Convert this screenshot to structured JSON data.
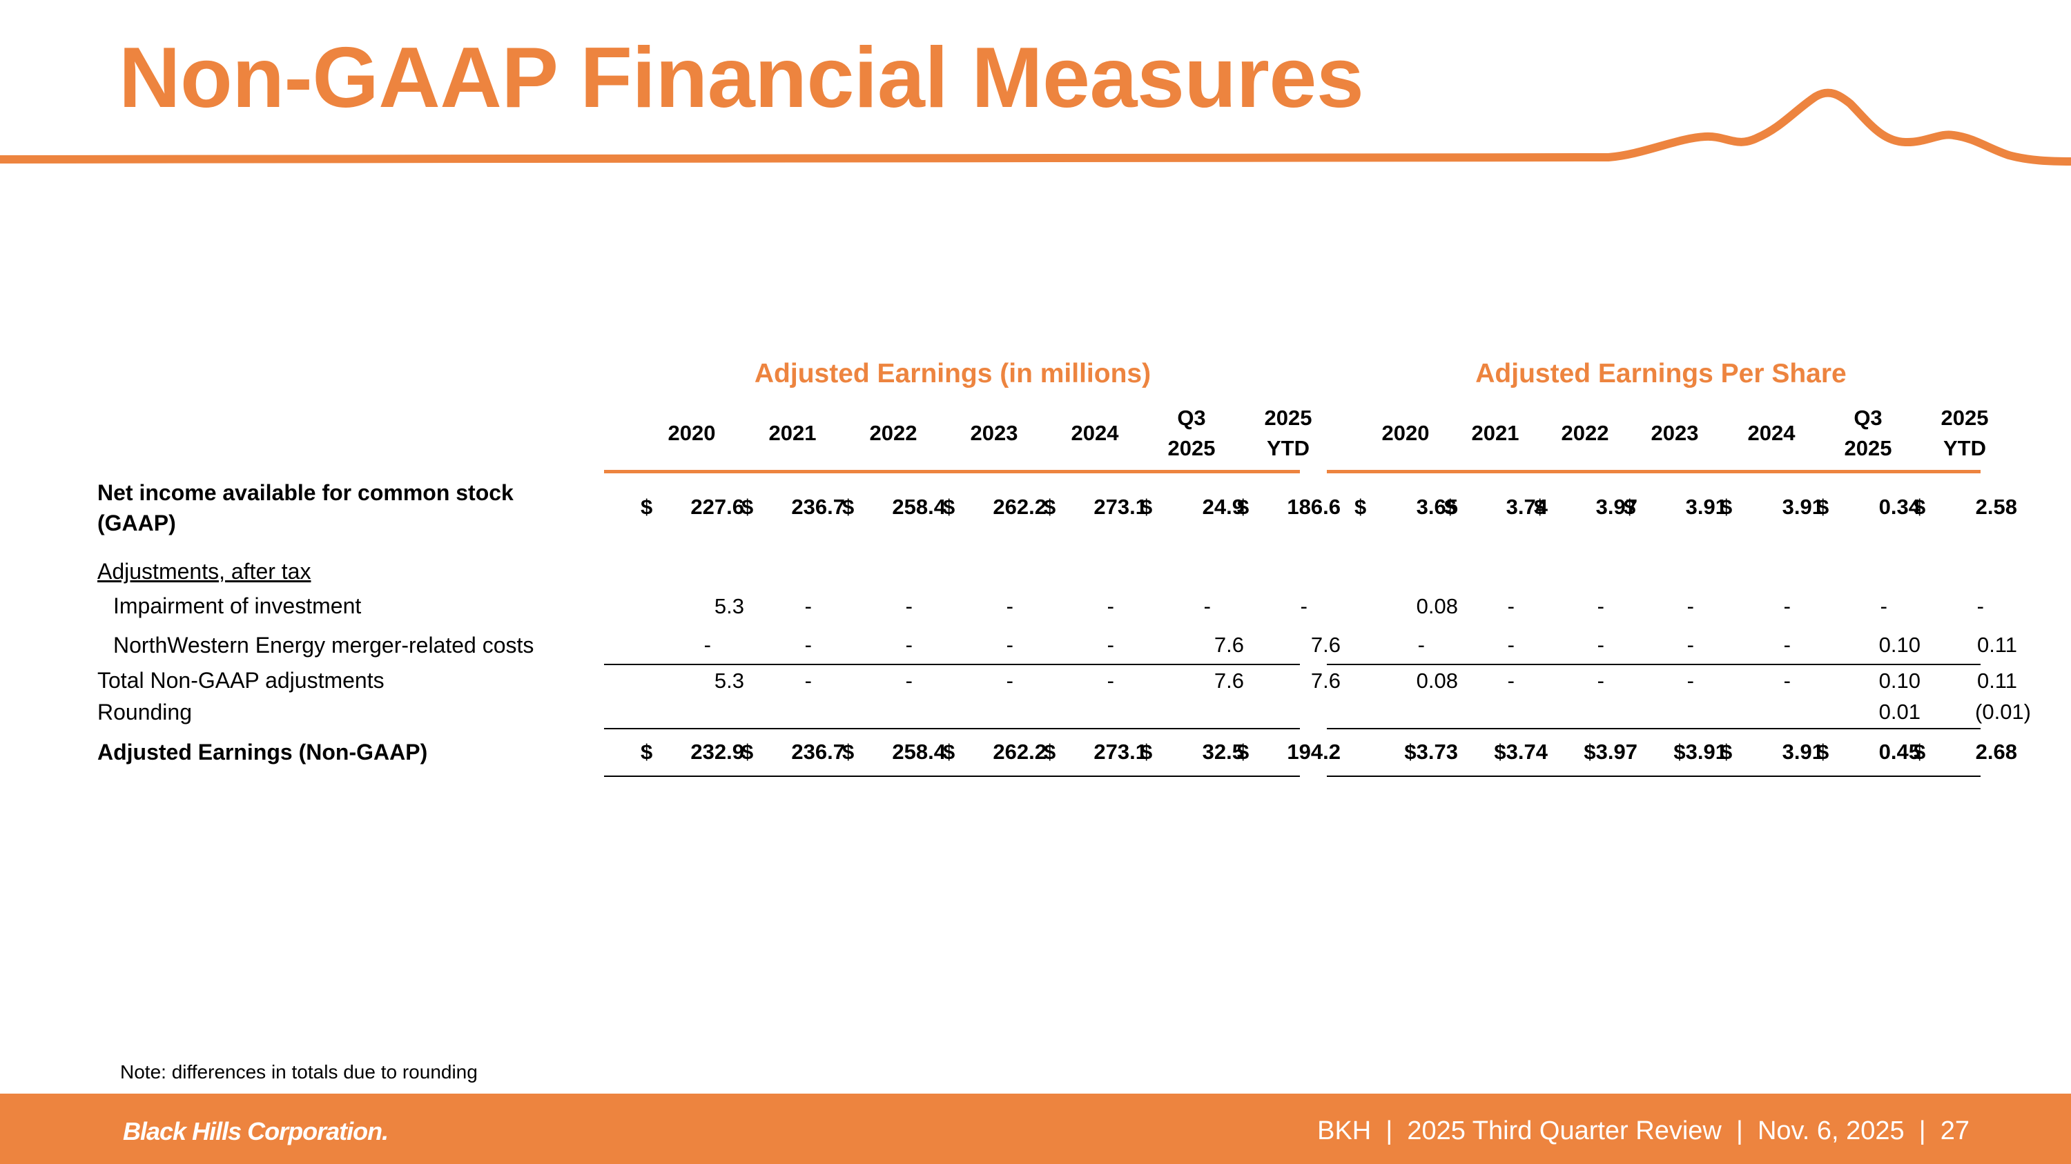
{
  "title": "Non-GAAP Financial Measures",
  "colors": {
    "accent": "#ED843F",
    "text": "#000000",
    "footer_text": "#FFFFFF"
  },
  "sections": {
    "millions": "Adjusted Earnings (in millions)",
    "eps": "Adjusted Earnings Per Share"
  },
  "columns": {
    "millions": [
      {
        "l1": "",
        "l2": "2020"
      },
      {
        "l1": "",
        "l2": "2021"
      },
      {
        "l1": "",
        "l2": "2022"
      },
      {
        "l1": "",
        "l2": "2023"
      },
      {
        "l1": "",
        "l2": "2024"
      },
      {
        "l1": "Q3",
        "l2": "2025"
      },
      {
        "l1": "2025",
        "l2": "YTD"
      }
    ],
    "eps": [
      {
        "l1": "",
        "l2": "2020"
      },
      {
        "l1": "",
        "l2": "2021"
      },
      {
        "l1": "",
        "l2": "2022"
      },
      {
        "l1": "",
        "l2": "2023"
      },
      {
        "l1": "",
        "l2": "2024"
      },
      {
        "l1": "Q3",
        "l2": "2025"
      },
      {
        "l1": "2025",
        "l2": "YTD"
      }
    ]
  },
  "rows": {
    "net_income": {
      "label1": "Net income available for common stock",
      "label2": "(GAAP)",
      "millions": [
        {
          "cur": "$",
          "val": "227.6"
        },
        {
          "cur": "$",
          "val": "236.7"
        },
        {
          "cur": "$",
          "val": "258.4"
        },
        {
          "cur": "$",
          "val": "262.2"
        },
        {
          "cur": "$",
          "val": "273.1"
        },
        {
          "cur": "$",
          "val": "24.9"
        },
        {
          "cur": "$",
          "val": "186.6"
        }
      ],
      "eps": [
        {
          "cur": "$",
          "val": "3.65"
        },
        {
          "cur": "$",
          "val": "3.74"
        },
        {
          "cur": "$",
          "val": "3.97"
        },
        {
          "cur": "$",
          "val": "3.91"
        },
        {
          "cur": "$",
          "val": "3.91"
        },
        {
          "cur": "$",
          "val": "0.34"
        },
        {
          "cur": "$",
          "val": "2.58"
        }
      ]
    },
    "adjustments_header": "Adjustments, after tax",
    "impairment": {
      "label": "Impairment of investment",
      "millions": [
        "5.3",
        "-",
        "-",
        "-",
        "-",
        "-",
        "-"
      ],
      "eps": [
        "0.08",
        "-",
        "-",
        "-",
        "-",
        "-",
        "-"
      ]
    },
    "merger": {
      "label": "NorthWestern Energy merger-related costs",
      "millions": [
        "-",
        "-",
        "-",
        "-",
        "-",
        "7.6",
        "7.6"
      ],
      "eps": [
        "-",
        "-",
        "-",
        "-",
        "-",
        "0.10",
        "0.11"
      ]
    },
    "total": {
      "label": "Total Non-GAAP adjustments",
      "millions": [
        "5.3",
        "-",
        "-",
        "-",
        "-",
        "7.6",
        "7.6"
      ],
      "eps": [
        "0.08",
        "-",
        "-",
        "-",
        "-",
        "0.10",
        "0.11"
      ]
    },
    "rounding": {
      "label": "Rounding",
      "eps_q3": "0.01",
      "eps_ytd": "(0.01)"
    },
    "adjusted": {
      "label": "Adjusted Earnings (Non-GAAP)",
      "millions": [
        {
          "cur": "$",
          "val": "232.9"
        },
        {
          "cur": "$",
          "val": "236.7"
        },
        {
          "cur": "$",
          "val": "258.4"
        },
        {
          "cur": "$",
          "val": "262.2"
        },
        {
          "cur": "$",
          "val": "273.1"
        },
        {
          "cur": "$",
          "val": "32.5"
        },
        {
          "cur": "$",
          "val": "194.2"
        }
      ],
      "eps": [
        {
          "cur": "",
          "val": "$3.73"
        },
        {
          "cur": "",
          "val": "$3.74"
        },
        {
          "cur": "",
          "val": "$3.97"
        },
        {
          "cur": "",
          "val": "$3.91"
        },
        {
          "cur": "$",
          "val": "3.91"
        },
        {
          "cur": "$",
          "val": "0.45"
        },
        {
          "cur": "$",
          "val": "2.68"
        }
      ]
    }
  },
  "note": "Note: differences in totals due to rounding",
  "footer": {
    "logo": "Black Hills Corporation.",
    "text": "BKH  |  2025 Third Quarter Review  |  Nov. 6, 2025  |  27"
  }
}
